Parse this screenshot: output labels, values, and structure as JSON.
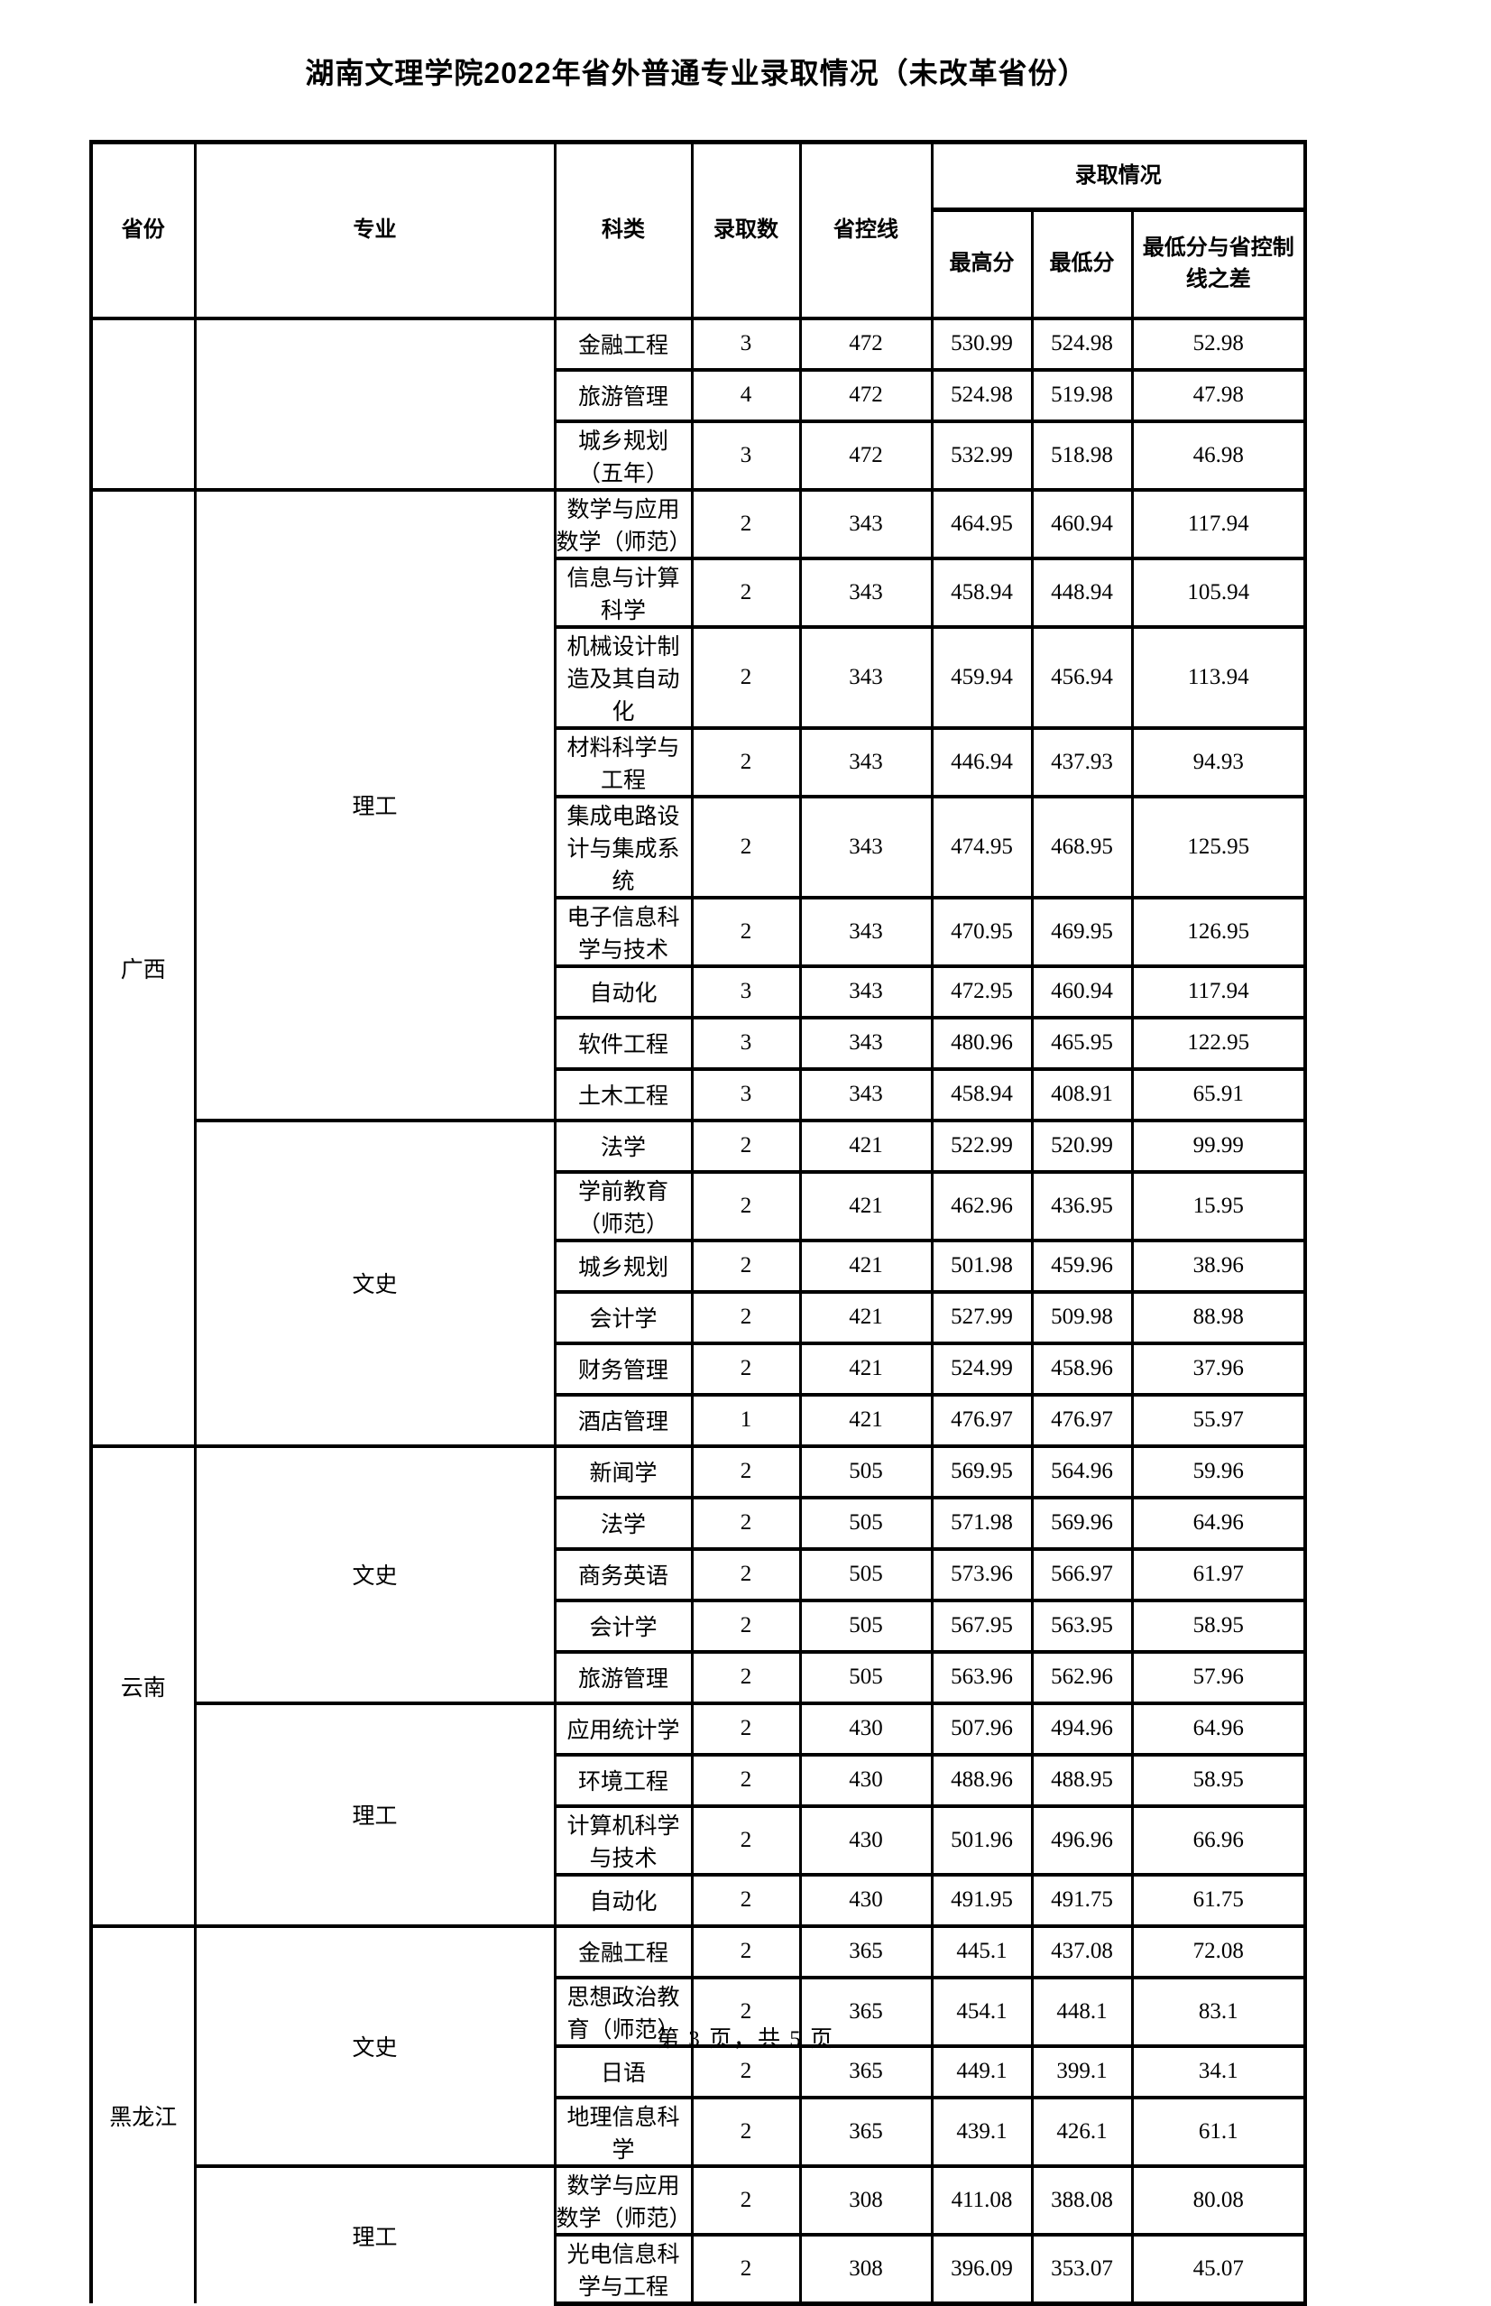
{
  "page": {
    "title": "湖南文理学院2022年省外普通专业录取情况（未改革省份）",
    "footer": "第 3 页，共 5 页"
  },
  "table": {
    "headers": {
      "province": "省份",
      "major": "专业",
      "category": "科类",
      "admit_count": "录取数",
      "province_control_line": "省控线",
      "admission_status": "录取情况",
      "highest_score": "最高分",
      "lowest_score": "最低分",
      "diff": "最低分与省控制线之差"
    },
    "groups": [
      {
        "province": "",
        "continues": false,
        "sections": [
          {
            "category": "",
            "continues": false,
            "rows": [
              {
                "major": "金融工程",
                "count": "3",
                "line": "472",
                "high": "530.99",
                "low": "524.98",
                "diff": "52.98"
              },
              {
                "major": "旅游管理",
                "count": "4",
                "line": "472",
                "high": "524.98",
                "low": "519.98",
                "diff": "47.98"
              },
              {
                "major": "城乡规划（五年）",
                "count": "3",
                "line": "472",
                "high": "532.99",
                "low": "518.98",
                "diff": "46.98"
              }
            ]
          }
        ]
      },
      {
        "province": "广西",
        "continues": false,
        "sections": [
          {
            "category": "理工",
            "continues": false,
            "rows": [
              {
                "major": "数学与应用数学（师范）",
                "count": "2",
                "line": "343",
                "high": "464.95",
                "low": "460.94",
                "diff": "117.94"
              },
              {
                "major": "信息与计算科学",
                "count": "2",
                "line": "343",
                "high": "458.94",
                "low": "448.94",
                "diff": "105.94"
              },
              {
                "major": "机械设计制造及其自动化",
                "count": "2",
                "line": "343",
                "high": "459.94",
                "low": "456.94",
                "diff": "113.94"
              },
              {
                "major": "材料科学与工程",
                "count": "2",
                "line": "343",
                "high": "446.94",
                "low": "437.93",
                "diff": "94.93"
              },
              {
                "major": "集成电路设计与集成系统",
                "count": "2",
                "line": "343",
                "high": "474.95",
                "low": "468.95",
                "diff": "125.95"
              },
              {
                "major": "电子信息科学与技术",
                "count": "2",
                "line": "343",
                "high": "470.95",
                "low": "469.95",
                "diff": "126.95"
              },
              {
                "major": "自动化",
                "count": "3",
                "line": "343",
                "high": "472.95",
                "low": "460.94",
                "diff": "117.94"
              },
              {
                "major": "软件工程",
                "count": "3",
                "line": "343",
                "high": "480.96",
                "low": "465.95",
                "diff": "122.95"
              },
              {
                "major": "土木工程",
                "count": "3",
                "line": "343",
                "high": "458.94",
                "low": "408.91",
                "diff": "65.91"
              }
            ]
          },
          {
            "category": "文史",
            "continues": false,
            "rows": [
              {
                "major": "法学",
                "count": "2",
                "line": "421",
                "high": "522.99",
                "low": "520.99",
                "diff": "99.99"
              },
              {
                "major": "学前教育（师范）",
                "count": "2",
                "line": "421",
                "high": "462.96",
                "low": "436.95",
                "diff": "15.95"
              },
              {
                "major": "城乡规划",
                "count": "2",
                "line": "421",
                "high": "501.98",
                "low": "459.96",
                "diff": "38.96"
              },
              {
                "major": "会计学",
                "count": "2",
                "line": "421",
                "high": "527.99",
                "low": "509.98",
                "diff": "88.98"
              },
              {
                "major": "财务管理",
                "count": "2",
                "line": "421",
                "high": "524.99",
                "low": "458.96",
                "diff": "37.96"
              },
              {
                "major": "酒店管理",
                "count": "1",
                "line": "421",
                "high": "476.97",
                "low": "476.97",
                "diff": "55.97"
              }
            ]
          }
        ]
      },
      {
        "province": "云南",
        "continues": false,
        "sections": [
          {
            "category": "文史",
            "continues": false,
            "rows": [
              {
                "major": "新闻学",
                "count": "2",
                "line": "505",
                "high": "569.95",
                "low": "564.96",
                "diff": "59.96"
              },
              {
                "major": "法学",
                "count": "2",
                "line": "505",
                "high": "571.98",
                "low": "569.96",
                "diff": "64.96"
              },
              {
                "major": "商务英语",
                "count": "2",
                "line": "505",
                "high": "573.96",
                "low": "566.97",
                "diff": "61.97"
              },
              {
                "major": "会计学",
                "count": "2",
                "line": "505",
                "high": "567.95",
                "low": "563.95",
                "diff": "58.95"
              },
              {
                "major": "旅游管理",
                "count": "2",
                "line": "505",
                "high": "563.96",
                "low": "562.96",
                "diff": "57.96"
              }
            ]
          },
          {
            "category": "理工",
            "continues": false,
            "rows": [
              {
                "major": "应用统计学",
                "count": "2",
                "line": "430",
                "high": "507.96",
                "low": "494.96",
                "diff": "64.96"
              },
              {
                "major": "环境工程",
                "count": "2",
                "line": "430",
                "high": "488.96",
                "low": "488.95",
                "diff": "58.95"
              },
              {
                "major": "计算机科学与技术",
                "count": "2",
                "line": "430",
                "high": "501.96",
                "low": "496.96",
                "diff": "66.96"
              },
              {
                "major": "自动化",
                "count": "2",
                "line": "430",
                "high": "491.95",
                "low": "491.75",
                "diff": "61.75"
              }
            ]
          }
        ]
      },
      {
        "province": "黑龙江",
        "continues": true,
        "sections": [
          {
            "category": "文史",
            "continues": false,
            "rows": [
              {
                "major": "金融工程",
                "count": "2",
                "line": "365",
                "high": "445.1",
                "low": "437.08",
                "diff": "72.08"
              },
              {
                "major": "思想政治教育（师范）",
                "count": "2",
                "line": "365",
                "high": "454.1",
                "low": "448.1",
                "diff": "83.1"
              },
              {
                "major": "日语",
                "count": "2",
                "line": "365",
                "high": "449.1",
                "low": "399.1",
                "diff": "34.1"
              },
              {
                "major": "地理信息科学",
                "count": "2",
                "line": "365",
                "high": "439.1",
                "low": "426.1",
                "diff": "61.1"
              }
            ]
          },
          {
            "category": "理工",
            "continues": true,
            "rows": [
              {
                "major": "数学与应用数学（师范）",
                "count": "2",
                "line": "308",
                "high": "411.08",
                "low": "388.08",
                "diff": "80.08"
              },
              {
                "major": "光电信息科学与工程",
                "count": "2",
                "line": "308",
                "high": "396.09",
                "low": "353.07",
                "diff": "45.07"
              }
            ]
          }
        ]
      }
    ]
  }
}
